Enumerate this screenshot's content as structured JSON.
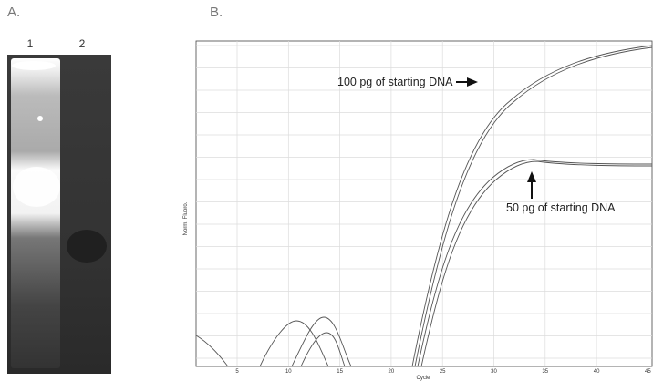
{
  "panels": [
    {
      "label": "A.",
      "lanes": [
        "1",
        "2"
      ]
    },
    {
      "label": "B.",
      "y_axis_label": "Norm. Fluoro.",
      "x_axis_label": "Cycle",
      "x_ticks": [
        "5",
        "10",
        "15",
        "20",
        "25",
        "30",
        "35",
        "40",
        "45"
      ],
      "annotations": [
        "100 pg of starting DNA",
        "50 pg of starting DNA"
      ]
    }
  ]
}
